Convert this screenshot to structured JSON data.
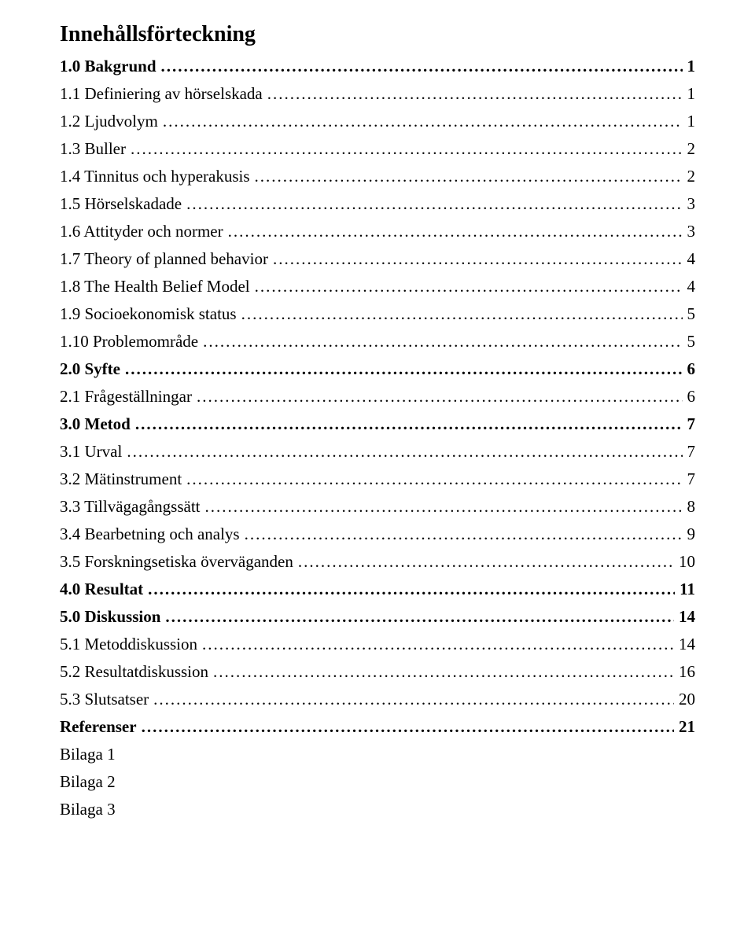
{
  "title": "Innehållsförteckning",
  "toc": [
    {
      "label": "1.0 Bakgrund",
      "page": "1",
      "level": 0
    },
    {
      "label": "1.1 Definiering av hörselskada",
      "page": "1",
      "level": 1
    },
    {
      "label": "1.2 Ljudvolym",
      "page": "1",
      "level": 1
    },
    {
      "label": "1.3 Buller",
      "page": "2",
      "level": 1
    },
    {
      "label": "1.4 Tinnitus och hyperakusis",
      "page": "2",
      "level": 1
    },
    {
      "label": "1.5 Hörselskadade",
      "page": "3",
      "level": 1
    },
    {
      "label": "1.6 Attityder och normer",
      "page": "3",
      "level": 1
    },
    {
      "label": "1.7 Theory of planned behavior",
      "page": "4",
      "level": 1
    },
    {
      "label": "1.8 The Health Belief Model",
      "page": "4",
      "level": 1
    },
    {
      "label": "1.9 Socioekonomisk status",
      "page": "5",
      "level": 1
    },
    {
      "label": "1.10 Problemområde",
      "page": "5",
      "level": 1
    },
    {
      "label": "2.0 Syfte",
      "page": "6",
      "level": 0
    },
    {
      "label": "2.1 Frågeställningar",
      "page": "6",
      "level": 1
    },
    {
      "label": "3.0 Metod",
      "page": "7",
      "level": 0
    },
    {
      "label": "3.1 Urval",
      "page": "7",
      "level": 1
    },
    {
      "label": "3.2 Mätinstrument",
      "page": "7",
      "level": 1
    },
    {
      "label": "3.3 Tillvägagångssätt",
      "page": "8",
      "level": 1
    },
    {
      "label": "3.4 Bearbetning och analys",
      "page": "9",
      "level": 1
    },
    {
      "label": "3.5 Forskningsetiska överväganden",
      "page": "10",
      "level": 1
    },
    {
      "label": "4.0 Resultat",
      "page": "11",
      "level": 0
    },
    {
      "label": "5.0 Diskussion",
      "page": "14",
      "level": 0
    },
    {
      "label": "5.1 Metoddiskussion",
      "page": "14",
      "level": 1
    },
    {
      "label": "5.2 Resultatdiskussion",
      "page": "16",
      "level": 1
    },
    {
      "label": "5.3 Slutsatser",
      "page": "20",
      "level": 1
    },
    {
      "label": "Referenser",
      "page": "21",
      "level": 0
    }
  ],
  "appendices": [
    "Bilaga 1",
    "Bilaga 2",
    "Bilaga 3"
  ]
}
